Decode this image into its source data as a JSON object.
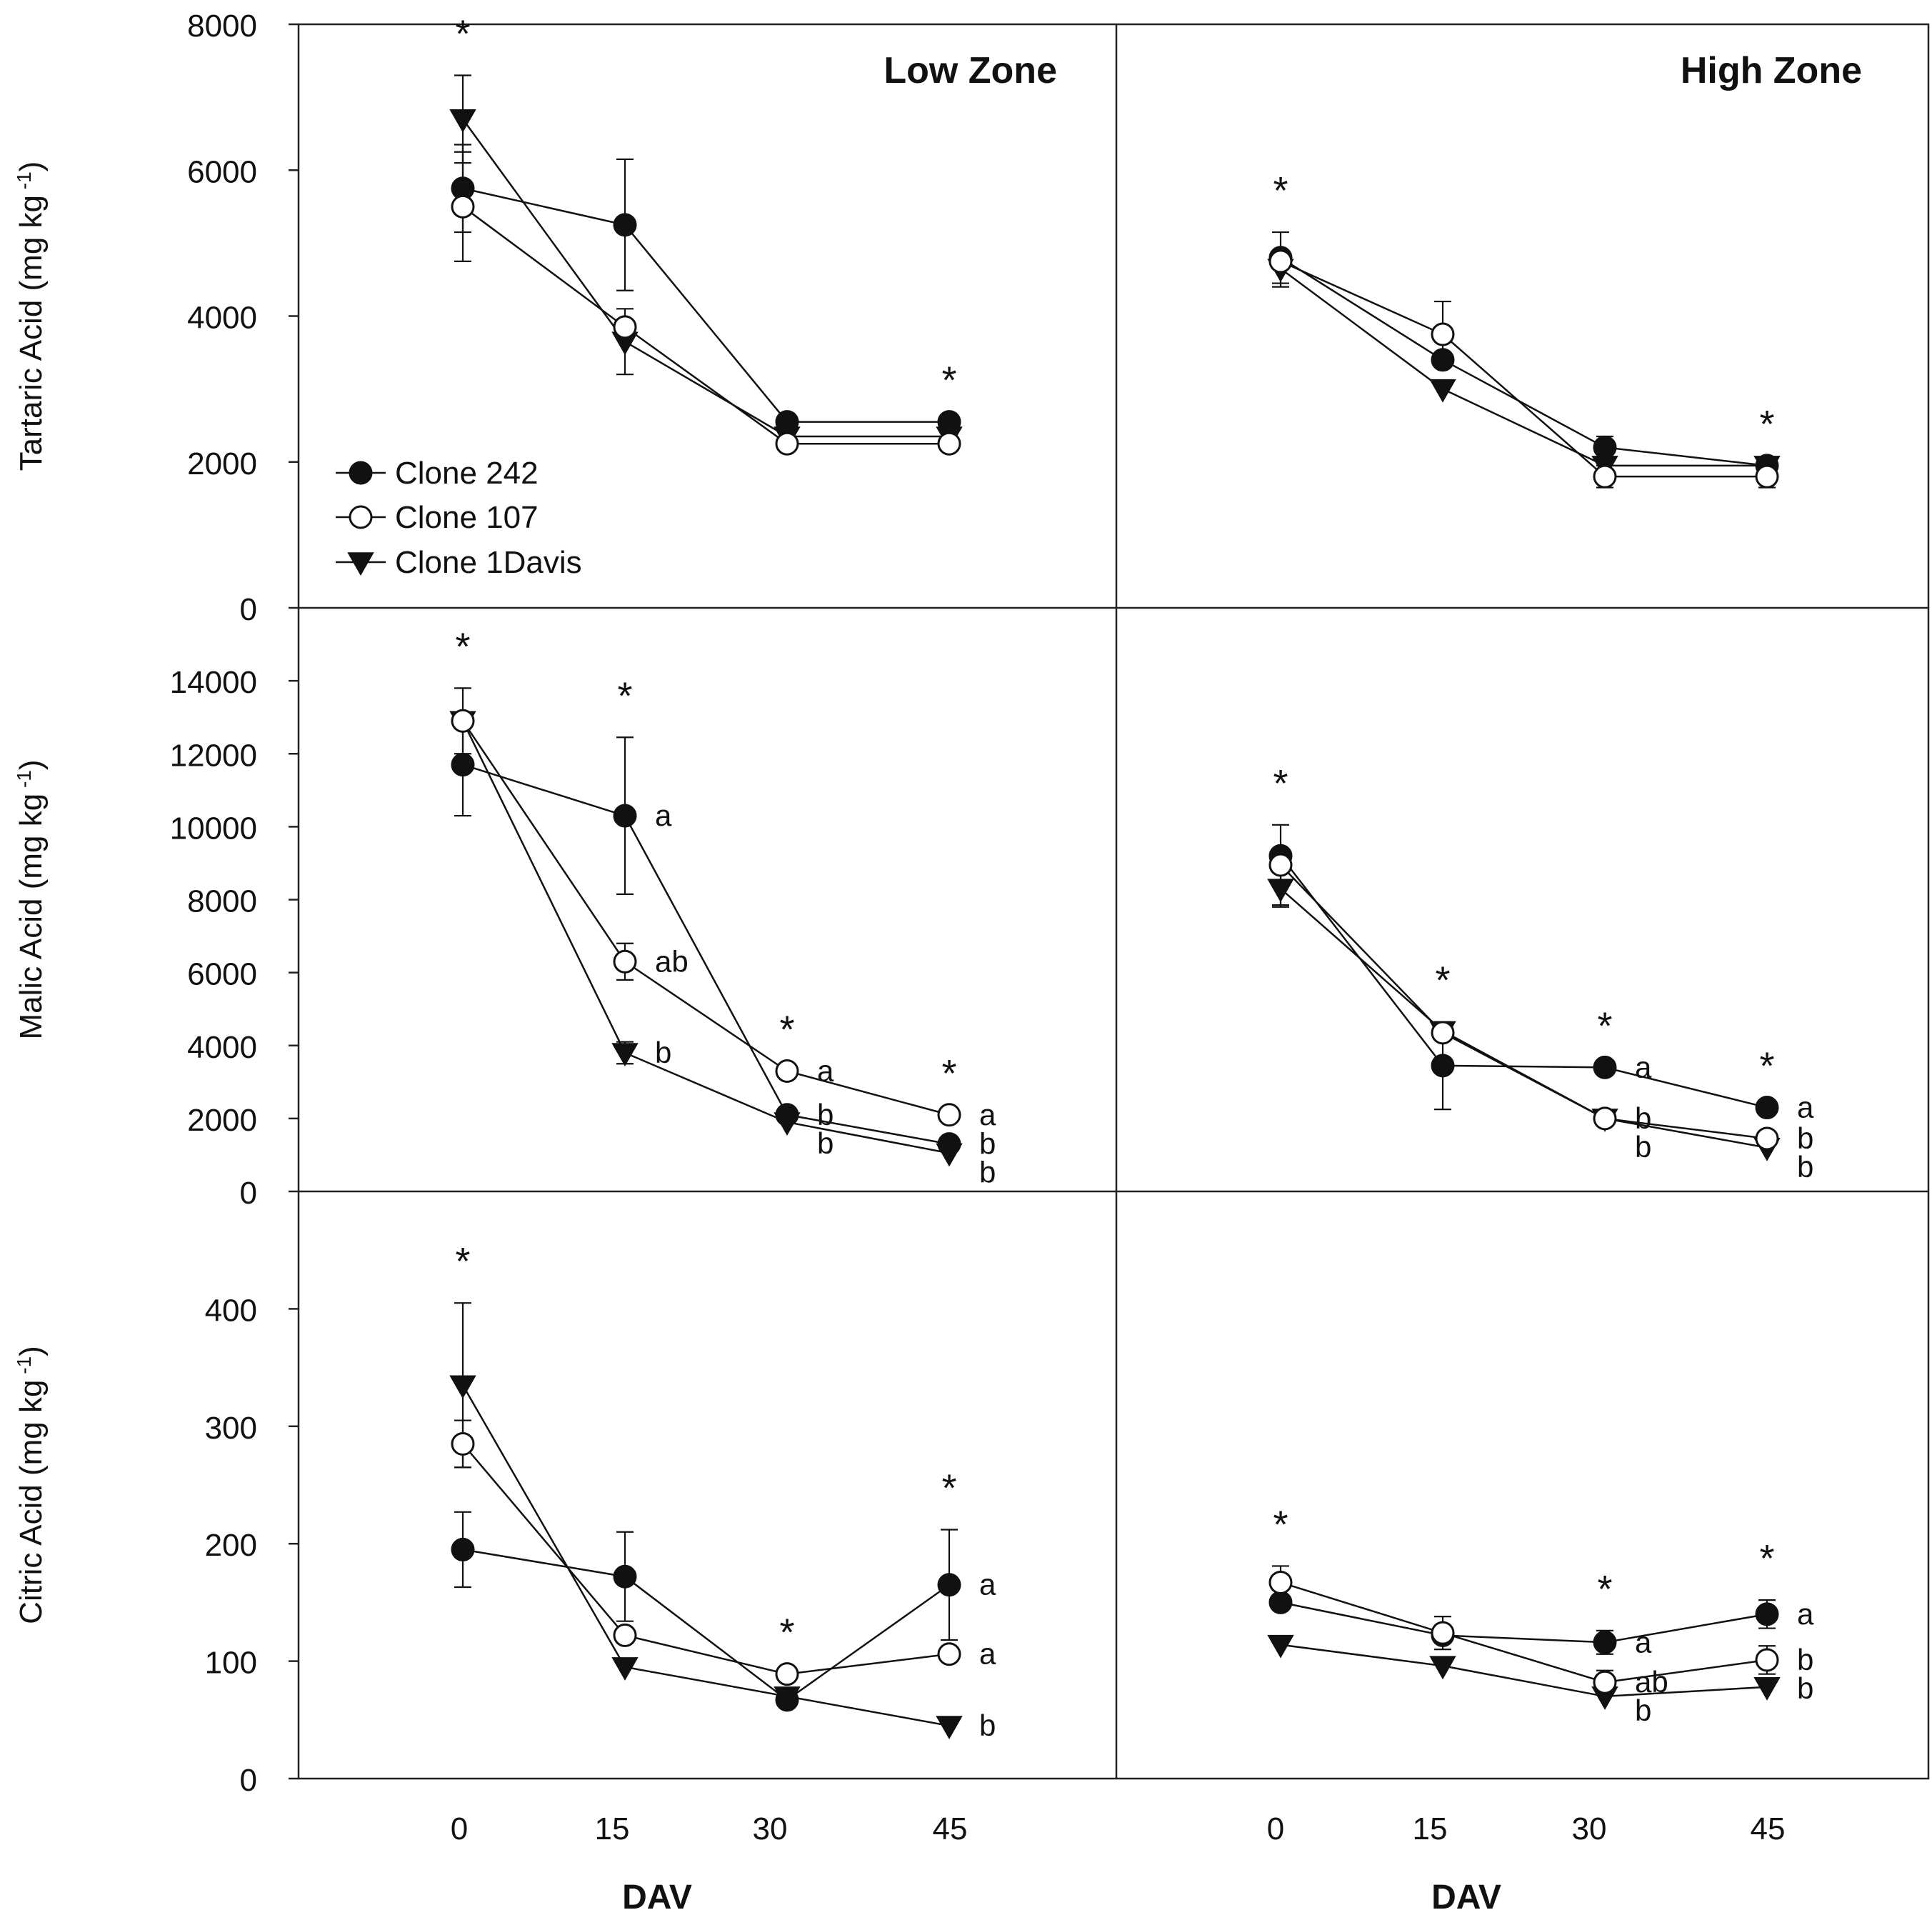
{
  "chart_data": {
    "type": "line",
    "xlabel": "DAV",
    "x_ticks": [
      "0",
      "15",
      "30",
      "45"
    ],
    "x": [
      0,
      15,
      30,
      45
    ],
    "columns": [
      {
        "key": "low",
        "title": "Low Zone"
      },
      {
        "key": "high",
        "title": "High Zone"
      }
    ],
    "legend": {
      "placement": "lower-left of top-left panel",
      "entries": [
        {
          "key": "c242",
          "label": "Clone 242",
          "marker": "filled-circle"
        },
        {
          "key": "c107",
          "label": "Clone 107",
          "marker": "open-circle"
        },
        {
          "key": "c1d",
          "label": "Clone 1Davis",
          "marker": "filled-triangle-down"
        }
      ]
    },
    "rows": [
      {
        "ylabel": "Tartaric Acid (mg kg",
        "ylabel_sup": "-1",
        "ylabel_close": ")",
        "ylim": [
          0,
          8000
        ],
        "yticks": [
          0,
          2000,
          4000,
          6000,
          8000
        ],
        "ytick_labels": [
          "0",
          "2000",
          "4000",
          "6000",
          "8000"
        ],
        "panels": {
          "low": {
            "series": {
              "c242": {
                "y": [
                  5750,
                  5250,
                  2550,
                  2550
                ],
                "err": [
                  600,
                  900,
                  0,
                  0
                ]
              },
              "c107": {
                "y": [
                  5500,
                  3850,
                  2250,
                  2250
                ],
                "err": [
                  750,
                  0,
                  0,
                  0
                ]
              },
              "c1d": {
                "y": [
                  6700,
                  3650,
                  2350,
                  2350
                ],
                "err": [
                  600,
                  450,
                  0,
                  0
                ]
              }
            },
            "stars": [
              true,
              false,
              false,
              true
            ],
            "letters": [
              [
                "",
                "",
                ""
              ],
              [
                "",
                "",
                ""
              ],
              [
                "",
                "",
                ""
              ],
              [
                "",
                "",
                ""
              ]
            ]
          },
          "high": {
            "series": {
              "c242": {
                "y": [
                  4800,
                  3400,
                  2200,
                  1950
                ],
                "err": [
                  350,
                  0,
                  150,
                  0
                ]
              },
              "c107": {
                "y": [
                  4750,
                  3750,
                  1800,
                  1800
                ],
                "err": [
                  0,
                  450,
                  150,
                  150
                ]
              },
              "c1d": {
                "y": [
                  4650,
                  3000,
                  1950,
                  1950
                ],
                "err": [
                  250,
                  0,
                  0,
                  0
                ]
              }
            },
            "stars": [
              true,
              false,
              false,
              true
            ],
            "letters": [
              [
                "",
                "",
                ""
              ],
              [
                "",
                "",
                ""
              ],
              [
                "",
                "",
                ""
              ],
              [
                "",
                "",
                ""
              ]
            ]
          }
        }
      },
      {
        "ylabel": "Malic Acid (mg kg",
        "ylabel_sup": "-1",
        "ylabel_close": ")",
        "ylim": [
          0,
          16000
        ],
        "yticks": [
          0,
          2000,
          4000,
          6000,
          8000,
          10000,
          12000,
          14000
        ],
        "ytick_labels": [
          "0",
          "2000",
          "4000",
          "6000",
          "8000",
          "10000",
          "12000",
          "14000"
        ],
        "panels": {
          "low": {
            "series": {
              "c242": {
                "y": [
                  11700,
                  10300,
                  2100,
                  1300
                ],
                "err": [
                  1400,
                  2150,
                  0,
                  0
                ]
              },
              "c107": {
                "y": [
                  12900,
                  6300,
                  3300,
                  2100
                ],
                "err": [
                  0,
                  500,
                  0,
                  0
                ]
              },
              "c1d": {
                "y": [
                  12900,
                  3800,
                  1900,
                  1050
                ],
                "err": [
                  900,
                  300,
                  0,
                  0
                ]
              }
            },
            "stars": [
              true,
              true,
              true,
              true
            ],
            "letters": [
              [
                "",
                "",
                ""
              ],
              [
                "a",
                "ab",
                "b"
              ],
              [
                "b",
                "a",
                "b"
              ],
              [
                "b",
                "a",
                "b"
              ]
            ]
          },
          "high": {
            "series": {
              "c242": {
                "y": [
                  9200,
                  3450,
                  3400,
                  2300
                ],
                "err": [
                  0,
                  1200,
                  0,
                  0
                ]
              },
              "c107": {
                "y": [
                  8950,
                  4350,
                  2000,
                  1450
                ],
                "err": [
                  1100,
                  0,
                  0,
                  0
                ]
              },
              "c1d": {
                "y": [
                  8300,
                  4400,
                  2000,
                  1200
                ],
                "err": [
                  500,
                  0,
                  0,
                  0
                ]
              }
            },
            "stars": [
              true,
              true,
              true,
              true
            ],
            "letters": [
              [
                "",
                "",
                ""
              ],
              [
                "",
                "",
                ""
              ],
              [
                "a",
                "b",
                "b"
              ],
              [
                "a",
                "b",
                "b"
              ]
            ]
          }
        }
      },
      {
        "ylabel": "Citric Acid (mg kg",
        "ylabel_sup": "-1",
        "ylabel_close": ")",
        "ylim": [
          0,
          500
        ],
        "yticks": [
          0,
          100,
          200,
          300,
          400
        ],
        "ytick_labels": [
          "0",
          "100",
          "200",
          "300",
          "400"
        ],
        "panels": {
          "low": {
            "series": {
              "c242": {
                "y": [
                  195,
                  172,
                  67,
                  165
                ],
                "err": [
                  32,
                  38,
                  0,
                  47
                ]
              },
              "c107": {
                "y": [
                  285,
                  122,
                  89,
                  106
                ],
                "err": [
                  20,
                  0,
                  0,
                  0
                ]
              },
              "c1d": {
                "y": [
                  335,
                  95,
                  70,
                  45
                ],
                "err": [
                  70,
                  0,
                  0,
                  0
                ]
              }
            },
            "stars": [
              true,
              false,
              true,
              true
            ],
            "letters": [
              [
                "",
                "",
                ""
              ],
              [
                "",
                "",
                ""
              ],
              [
                "",
                "",
                ""
              ],
              [
                "a",
                "a",
                "b"
              ]
            ]
          },
          "high": {
            "series": {
              "c242": {
                "y": [
                  150,
                  122,
                  116,
                  140
                ],
                "err": [
                  0,
                  0,
                  10,
                  12
                ]
              },
              "c107": {
                "y": [
                  167,
                  124,
                  82,
                  101
                ],
                "err": [
                  14,
                  14,
                  10,
                  12
                ]
              },
              "c1d": {
                "y": [
                  114,
                  96,
                  70,
                  78
                ],
                "err": [
                  0,
                  0,
                  0,
                  0
                ]
              }
            },
            "stars": [
              true,
              false,
              true,
              true
            ],
            "letters": [
              [
                "",
                "",
                ""
              ],
              [
                "",
                "",
                ""
              ],
              [
                "a",
                "ab",
                "b"
              ],
              [
                "a",
                "b",
                "b"
              ]
            ]
          }
        }
      }
    ]
  }
}
